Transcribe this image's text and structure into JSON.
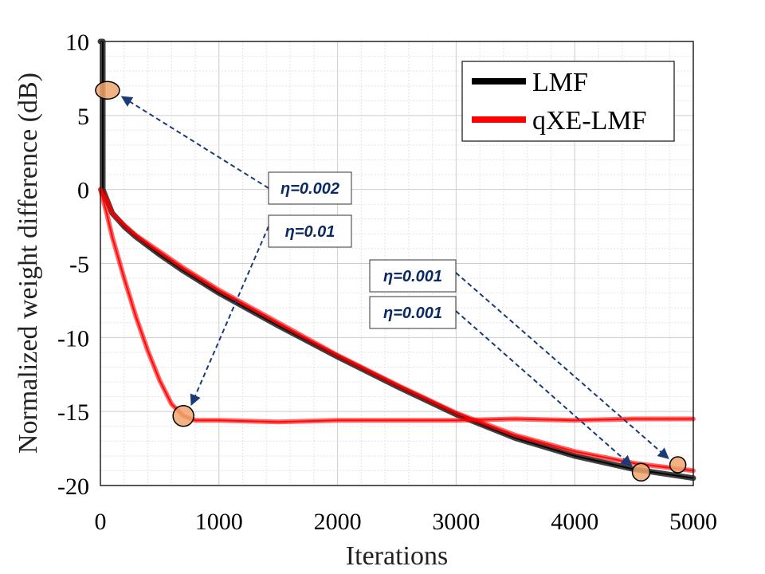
{
  "chart_data": {
    "type": "line",
    "xlabel": "Iterations",
    "ylabel": "Normalized weight difference (dB)",
    "xlim": [
      0,
      5000
    ],
    "ylim": [
      -20,
      10
    ],
    "x_ticks": [
      "0",
      "1000",
      "2000",
      "3000",
      "4000",
      "5000"
    ],
    "y_ticks": [
      "10",
      "5",
      "0",
      "-5",
      "-10",
      "-15",
      "-20"
    ],
    "grid": true,
    "legend_position": "top-right",
    "series": [
      {
        "name": "LMF",
        "color": "#000000",
        "points": [
          [
            0,
            10
          ],
          [
            20,
            10
          ],
          [
            20,
            0
          ],
          [
            50,
            -0.6
          ],
          [
            100,
            -1.6
          ],
          [
            200,
            -2.5
          ],
          [
            300,
            -3.2
          ],
          [
            500,
            -4.4
          ],
          [
            700,
            -5.5
          ],
          [
            1000,
            -7.0
          ],
          [
            1500,
            -9.2
          ],
          [
            2000,
            -11.3
          ],
          [
            2500,
            -13.3
          ],
          [
            3000,
            -15.2
          ],
          [
            3500,
            -16.8
          ],
          [
            4000,
            -18.0
          ],
          [
            4500,
            -18.9
          ],
          [
            5000,
            -19.5
          ]
        ]
      },
      {
        "name": "qXE-LMF",
        "color": "#ff0000",
        "points": [
          [
            0,
            0
          ],
          [
            50,
            -1.5
          ],
          [
            100,
            -3.2
          ],
          [
            200,
            -6.0
          ],
          [
            300,
            -8.6
          ],
          [
            400,
            -10.9
          ],
          [
            500,
            -12.9
          ],
          [
            600,
            -14.5
          ],
          [
            700,
            -15.3
          ],
          [
            800,
            -15.6
          ],
          [
            1000,
            -15.6
          ],
          [
            1500,
            -15.7
          ],
          [
            2000,
            -15.6
          ],
          [
            2500,
            -15.6
          ],
          [
            3000,
            -15.6
          ],
          [
            3500,
            -15.5
          ],
          [
            4000,
            -15.6
          ],
          [
            4500,
            -15.5
          ],
          [
            5000,
            -15.5
          ]
        ]
      },
      {
        "name": "",
        "color": "#ff0000",
        "points": [
          [
            0,
            0
          ],
          [
            50,
            -0.6
          ],
          [
            100,
            -1.6
          ],
          [
            200,
            -2.4
          ],
          [
            300,
            -3.1
          ],
          [
            500,
            -4.2
          ],
          [
            700,
            -5.3
          ],
          [
            1000,
            -6.8
          ],
          [
            1500,
            -9.0
          ],
          [
            2000,
            -11.2
          ],
          [
            2500,
            -13.2
          ],
          [
            3000,
            -15.1
          ],
          [
            3500,
            -16.6
          ],
          [
            4000,
            -17.7
          ],
          [
            4500,
            -18.5
          ],
          [
            5000,
            -19.0
          ]
        ]
      }
    ],
    "legend": [
      {
        "label": "LMF",
        "color": "#000000"
      },
      {
        "label": "qXE-LMF",
        "color": "#ff0000"
      }
    ],
    "annotations": [
      {
        "text": "η=0.002",
        "target": [
          60,
          6.7
        ]
      },
      {
        "text": "η=0.01",
        "target": [
          700,
          -15.3
        ]
      },
      {
        "text": "η=0.001",
        "target": [
          4870,
          -18.6
        ]
      },
      {
        "text": "η=0.001",
        "target": [
          4560,
          -19.1
        ]
      }
    ]
  }
}
